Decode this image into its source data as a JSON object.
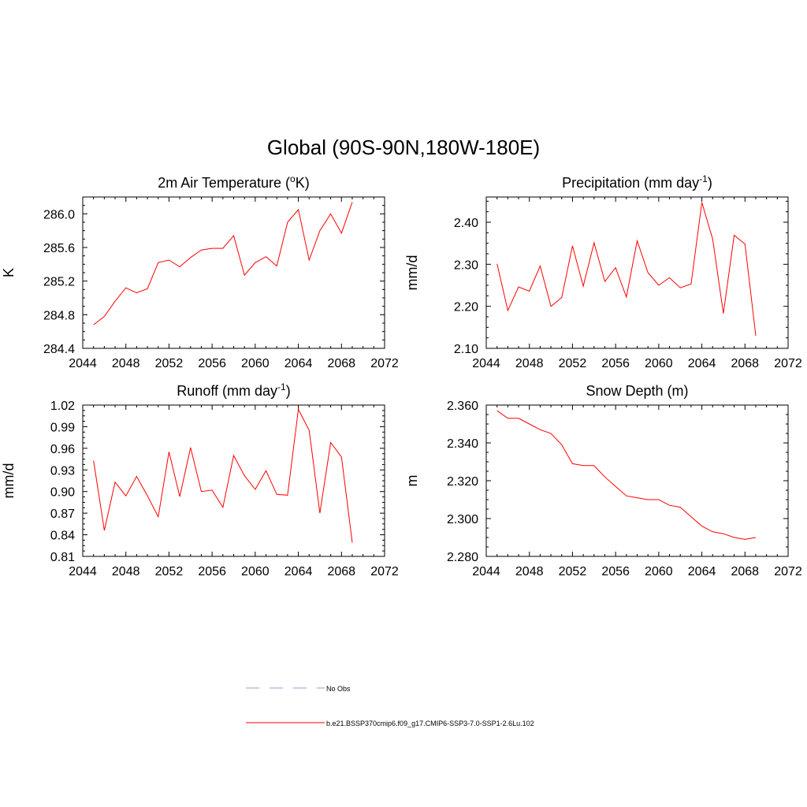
{
  "figure": {
    "title": "Global (90S-90N,180W-180E)"
  },
  "legend": {
    "entries": [
      {
        "label": "No Obs",
        "color": "#9999dd",
        "dash": true
      },
      {
        "label": "b.e21.BSSP370cmip6.f09_g17.CMIP6-SSP3-7.0-SSP1-2.6Lu.102",
        "color": "#ff0000",
        "dash": false
      }
    ]
  },
  "chart_data": [
    {
      "type": "line",
      "title": "2m Air Temperature (",
      "title_super": "o",
      "title_suffix": "K)",
      "ylabel": "K",
      "xlim": [
        2044,
        2072
      ],
      "ylim": [
        284.4,
        286.2
      ],
      "x_ticks": [
        2044,
        2048,
        2052,
        2056,
        2060,
        2064,
        2068,
        2072
      ],
      "y_ticks": [
        284.4,
        284.8,
        285.2,
        285.6,
        286.0
      ],
      "y_tick_labels": [
        "284.4",
        "284.8",
        "285.2",
        "285.6",
        "286.0"
      ],
      "series": [
        {
          "color": "#ff0000",
          "x": [
            2045,
            2046,
            2047,
            2048,
            2049,
            2050,
            2051,
            2052,
            2053,
            2054,
            2055,
            2056,
            2057,
            2058,
            2059,
            2060,
            2061,
            2062,
            2063,
            2064,
            2065,
            2066,
            2067,
            2068,
            2069
          ],
          "values": [
            284.68,
            284.78,
            284.96,
            285.12,
            285.06,
            285.11,
            285.42,
            285.45,
            285.37,
            285.48,
            285.57,
            285.59,
            285.59,
            285.74,
            285.27,
            285.42,
            285.49,
            285.38,
            285.9,
            286.05,
            285.45,
            285.8,
            286.0,
            285.77,
            286.14
          ]
        }
      ]
    },
    {
      "type": "line",
      "title": "Precipitation (mm day",
      "title_super": "-1",
      "title_suffix": ")",
      "ylabel": "mm/d",
      "xlim": [
        2044,
        2072
      ],
      "ylim": [
        2.1,
        2.46
      ],
      "x_ticks": [
        2044,
        2048,
        2052,
        2056,
        2060,
        2064,
        2068,
        2072
      ],
      "y_ticks": [
        2.1,
        2.2,
        2.3,
        2.4
      ],
      "y_tick_labels": [
        "2.10",
        "2.20",
        "2.30",
        "2.40"
      ],
      "series": [
        {
          "color": "#ff0000",
          "x": [
            2045,
            2046,
            2047,
            2048,
            2049,
            2050,
            2051,
            2052,
            2053,
            2054,
            2055,
            2056,
            2057,
            2058,
            2059,
            2060,
            2061,
            2062,
            2063,
            2064,
            2065,
            2066,
            2067,
            2068,
            2069
          ],
          "values": [
            2.301,
            2.19,
            2.246,
            2.236,
            2.296,
            2.2,
            2.221,
            2.344,
            2.248,
            2.351,
            2.259,
            2.292,
            2.222,
            2.356,
            2.28,
            2.25,
            2.268,
            2.244,
            2.253,
            2.447,
            2.36,
            2.183,
            2.369,
            2.348,
            2.13
          ]
        }
      ]
    },
    {
      "type": "line",
      "title": "Runoff (mm day",
      "title_super": "-1",
      "title_suffix": ")",
      "ylabel": "mm/d",
      "xlim": [
        2044,
        2072
      ],
      "ylim": [
        0.81,
        1.02
      ],
      "x_ticks": [
        2044,
        2048,
        2052,
        2056,
        2060,
        2064,
        2068,
        2072
      ],
      "y_ticks": [
        0.81,
        0.84,
        0.87,
        0.9,
        0.93,
        0.96,
        0.99,
        1.02
      ],
      "y_tick_labels": [
        "0.81",
        "0.84",
        "0.87",
        "0.90",
        "0.93",
        "0.96",
        "0.99",
        "1.02"
      ],
      "series": [
        {
          "color": "#ff0000",
          "x": [
            2045,
            2046,
            2047,
            2048,
            2049,
            2050,
            2051,
            2052,
            2053,
            2054,
            2055,
            2056,
            2057,
            2058,
            2059,
            2060,
            2061,
            2062,
            2063,
            2064,
            2065,
            2066,
            2067,
            2068,
            2069
          ],
          "values": [
            0.943,
            0.846,
            0.913,
            0.894,
            0.921,
            0.894,
            0.865,
            0.955,
            0.893,
            0.961,
            0.9,
            0.902,
            0.878,
            0.95,
            0.922,
            0.903,
            0.929,
            0.896,
            0.895,
            1.014,
            0.985,
            0.87,
            0.968,
            0.948,
            0.829
          ]
        }
      ]
    },
    {
      "type": "line",
      "title": "Snow Depth (m)",
      "title_super": "",
      "title_suffix": "",
      "ylabel": "m",
      "xlim": [
        2044,
        2072
      ],
      "ylim": [
        2.28,
        2.36
      ],
      "x_ticks": [
        2044,
        2048,
        2052,
        2056,
        2060,
        2064,
        2068,
        2072
      ],
      "y_ticks": [
        2.28,
        2.3,
        2.32,
        2.34,
        2.36
      ],
      "y_tick_labels": [
        "2.280",
        "2.300",
        "2.320",
        "2.340",
        "2.360"
      ],
      "series": [
        {
          "color": "#ff0000",
          "x": [
            2045,
            2046,
            2047,
            2048,
            2049,
            2050,
            2051,
            2052,
            2053,
            2054,
            2055,
            2056,
            2057,
            2058,
            2059,
            2060,
            2061,
            2062,
            2063,
            2064,
            2065,
            2066,
            2067,
            2068,
            2069
          ],
          "values": [
            2.357,
            2.353,
            2.353,
            2.35,
            2.347,
            2.345,
            2.339,
            2.329,
            2.328,
            2.328,
            2.322,
            2.317,
            2.312,
            2.311,
            2.31,
            2.31,
            2.307,
            2.306,
            2.301,
            2.296,
            2.293,
            2.292,
            2.29,
            2.289,
            2.29
          ]
        }
      ]
    }
  ]
}
